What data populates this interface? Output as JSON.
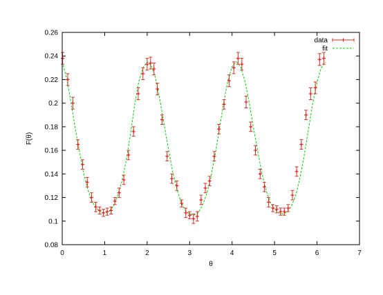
{
  "chart_data": {
    "type": "scatter",
    "title": "",
    "xlabel": "θ",
    "ylabel": "F(θ)",
    "xlim": [
      0,
      7
    ],
    "ylim": [
      0.08,
      0.26
    ],
    "xticks": [
      "0",
      "1",
      "2",
      "3",
      "4",
      "5",
      "6",
      "7"
    ],
    "yticks": [
      "0.08",
      "0.1",
      "0.12",
      "0.14",
      "0.16",
      "0.18",
      "0.2",
      "0.22",
      "0.24",
      "0.26"
    ],
    "grid": false,
    "legend_position": "top-right",
    "series": [
      {
        "name": "data",
        "color": "#e41a1c",
        "errorbar_color": "#cc3322",
        "x": [
          0.01,
          0.13,
          0.25,
          0.37,
          0.48,
          0.59,
          0.69,
          0.79,
          0.88,
          0.97,
          1.06,
          1.15,
          1.24,
          1.34,
          1.45,
          1.56,
          1.68,
          1.79,
          1.9,
          2.0,
          2.08,
          2.16,
          2.24,
          2.35,
          2.47,
          2.58,
          2.7,
          2.81,
          2.91,
          3.0,
          3.09,
          3.18,
          3.27,
          3.37,
          3.47,
          3.58,
          3.69,
          3.81,
          3.93,
          4.04,
          4.14,
          4.23,
          4.33,
          4.44,
          4.55,
          4.66,
          4.76,
          4.86,
          4.96,
          5.05,
          5.14,
          5.23,
          5.32,
          5.42,
          5.52,
          5.63,
          5.74,
          5.85,
          5.96,
          6.06,
          6.16
        ],
        "y": [
          0.238,
          0.22,
          0.2,
          0.165,
          0.148,
          0.133,
          0.12,
          0.112,
          0.109,
          0.107,
          0.108,
          0.109,
          0.117,
          0.124,
          0.135,
          0.156,
          0.176,
          0.208,
          0.225,
          0.233,
          0.234,
          0.229,
          0.212,
          0.186,
          0.155,
          0.136,
          0.13,
          0.115,
          0.107,
          0.105,
          0.102,
          0.104,
          0.118,
          0.128,
          0.134,
          0.155,
          0.178,
          0.199,
          0.219,
          0.23,
          0.238,
          0.233,
          0.201,
          0.18,
          0.16,
          0.14,
          0.129,
          0.116,
          0.111,
          0.11,
          0.108,
          0.108,
          0.111,
          0.122,
          0.142,
          0.165,
          0.19,
          0.208,
          0.213,
          0.237,
          0.238
        ],
        "err": [
          0.005,
          0.005,
          0.005,
          0.004,
          0.004,
          0.004,
          0.004,
          0.004,
          0.003,
          0.003,
          0.003,
          0.003,
          0.003,
          0.004,
          0.004,
          0.004,
          0.004,
          0.005,
          0.005,
          0.005,
          0.005,
          0.005,
          0.005,
          0.004,
          0.004,
          0.004,
          0.004,
          0.003,
          0.004,
          0.003,
          0.004,
          0.004,
          0.004,
          0.004,
          0.004,
          0.004,
          0.004,
          0.004,
          0.005,
          0.005,
          0.005,
          0.005,
          0.005,
          0.004,
          0.004,
          0.004,
          0.004,
          0.004,
          0.003,
          0.003,
          0.003,
          0.003,
          0.003,
          0.004,
          0.004,
          0.004,
          0.004,
          0.005,
          0.005,
          0.005,
          0.005
        ]
      },
      {
        "name": "fit",
        "type": "line",
        "color": "#00cc00",
        "dashed": true,
        "x": [
          0.0,
          0.1,
          0.2,
          0.3,
          0.4,
          0.5,
          0.6,
          0.7,
          0.8,
          0.9,
          1.0,
          1.1,
          1.2,
          1.3,
          1.4,
          1.5,
          1.6,
          1.7,
          1.8,
          1.9,
          2.0,
          2.1,
          2.2,
          2.3,
          2.4,
          2.5,
          2.6,
          2.7,
          2.8,
          2.9,
          3.0,
          3.1,
          3.2,
          3.3,
          3.4,
          3.5,
          3.6,
          3.7,
          3.8,
          3.9,
          4.0,
          4.1,
          4.2,
          4.3,
          4.4,
          4.5,
          4.6,
          4.7,
          4.8,
          4.9,
          5.0,
          5.1,
          5.2,
          5.3,
          5.4,
          5.5,
          5.6,
          5.7,
          5.8,
          5.9,
          6.0,
          6.1,
          6.2
        ],
        "y": [
          0.235,
          0.222,
          0.202,
          0.18,
          0.16,
          0.141,
          0.127,
          0.117,
          0.111,
          0.108,
          0.107,
          0.108,
          0.112,
          0.121,
          0.133,
          0.15,
          0.172,
          0.197,
          0.218,
          0.23,
          0.235,
          0.232,
          0.221,
          0.203,
          0.182,
          0.161,
          0.142,
          0.127,
          0.116,
          0.109,
          0.106,
          0.105,
          0.107,
          0.113,
          0.123,
          0.137,
          0.156,
          0.178,
          0.2,
          0.219,
          0.231,
          0.235,
          0.231,
          0.219,
          0.201,
          0.18,
          0.16,
          0.141,
          0.126,
          0.116,
          0.11,
          0.107,
          0.106,
          0.108,
          0.113,
          0.122,
          0.137,
          0.156,
          0.178,
          0.2,
          0.218,
          0.23,
          0.235
        ]
      }
    ]
  }
}
